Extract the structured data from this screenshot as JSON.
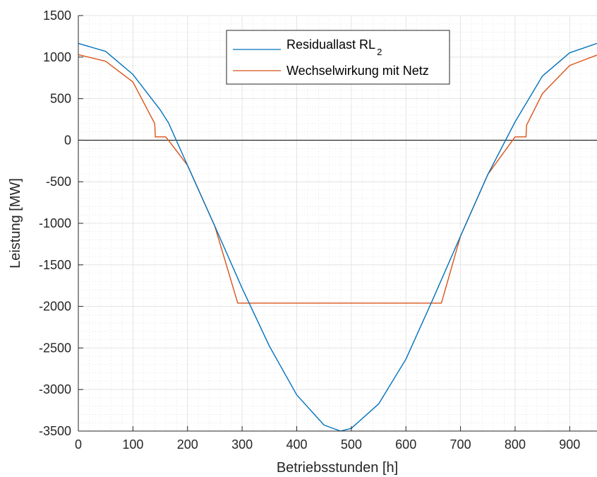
{
  "chart_data": {
    "type": "line",
    "title": "",
    "xlabel": "Betriebsstunden [h]",
    "ylabel": "Leistung [MW]",
    "xlim": [
      0,
      950
    ],
    "ylim": [
      -3500,
      1500
    ],
    "xticks": [
      0,
      100,
      200,
      300,
      400,
      500,
      600,
      700,
      800,
      900
    ],
    "yticks": [
      1500,
      1000,
      500,
      0,
      -500,
      -1000,
      -1500,
      -2000,
      -2500,
      -3000,
      -3500
    ],
    "x_tick_labels": [
      "0",
      "100",
      "200",
      "300",
      "400",
      "500",
      "600",
      "700",
      "800",
      "900"
    ],
    "y_tick_labels": [
      "1500",
      "1000",
      "500",
      "0",
      "-500",
      "-1000",
      "-1500",
      "-2000",
      "-2500",
      "-3000",
      "-3500"
    ],
    "grid": true,
    "minor_grid": true,
    "zero_line": true,
    "legend_position": "top-center",
    "series": [
      {
        "name": "Residuallast RL",
        "name_subscript": "2",
        "color": "#0072BD",
        "x": [
          0,
          50,
          100,
          150,
          165,
          200,
          250,
          300,
          350,
          400,
          450,
          480,
          500,
          550,
          600,
          650,
          700,
          750,
          800,
          850,
          900,
          950
        ],
        "y": [
          1165,
          1069,
          791,
          364,
          210,
          -302,
          -1034,
          -1781,
          -2479,
          -3065,
          -3428,
          -3500,
          -3468,
          -3174,
          -2635,
          -1905,
          -1154,
          -412,
          220,
          771,
          1052,
          1165
        ]
      },
      {
        "name": "Wechselwirkung mit Netz",
        "color": "#D95319",
        "x": [
          0,
          50,
          100,
          140,
          141,
          160,
          165,
          200,
          250,
          292,
          300,
          400,
          500,
          600,
          665,
          700,
          750,
          800,
          805,
          820,
          821,
          850,
          900,
          950
        ],
        "y": [
          1030,
          950,
          700,
          200,
          40,
          40,
          0,
          -302,
          -1034,
          -1960,
          -1960,
          -1960,
          -1960,
          -1960,
          -1960,
          -1154,
          -412,
          40,
          40,
          40,
          180,
          560,
          900,
          1025
        ]
      }
    ]
  }
}
